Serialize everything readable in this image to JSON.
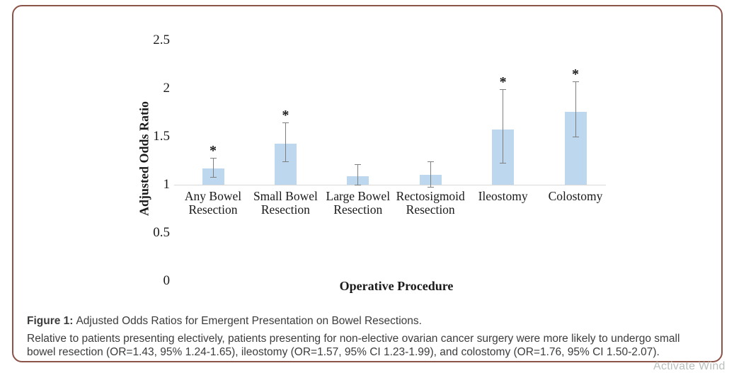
{
  "figure_caption": {
    "label": "Figure 1:",
    "title": "Adjusted Odds Ratios for Emergent Presentation on Bowel Resections.",
    "description_lines": [
      "Relative to patients presenting electively, patients presenting for non-elective ovarian cancer surgery were more likely to undergo small",
      "bowel resection (OR=1.43, 95% 1.24-1.65), ileostomy (OR=1.57, 95% CI 1.23-1.99), and colostomy (OR=1.76, 95% CI 1.50-2.07)."
    ]
  },
  "watermark": {
    "text": "Activate Wind"
  },
  "colors": {
    "figure_border": "#8c5348",
    "bar_fill": "#bdd7ee",
    "error_bar": "#7f7f7f",
    "axis_line": "#d9d9d9",
    "chart_text": "#1a1a1a",
    "caption_text": "#3c3c3c",
    "watermark_text": "#b9c0bb"
  },
  "chart_data": {
    "type": "bar",
    "title": "",
    "xlabel": "Operative Procedure",
    "ylabel": "Adjusted Odds Ratio",
    "categories": [
      "Any Bowel Resection",
      "Small Bowel Resection",
      "Large Bowel Resection",
      "Rectosigmoid Resection",
      "Ileostomy",
      "Colostomy"
    ],
    "values": [
      1.17,
      1.43,
      1.09,
      1.1,
      1.57,
      1.76
    ],
    "ci_low": [
      1.08,
      1.24,
      1.0,
      0.98,
      1.23,
      1.5
    ],
    "ci_high": [
      1.28,
      1.65,
      1.21,
      1.24,
      1.99,
      2.07
    ],
    "significant": [
      true,
      true,
      false,
      false,
      true,
      true
    ],
    "significance_marker": "*",
    "bar_base": 1,
    "ylim": [
      0,
      2.5
    ],
    "yticks": [
      {
        "label": "0",
        "value": 0
      },
      {
        "label": "0.5",
        "value": 0.5
      },
      {
        "label": "1",
        "value": 1
      },
      {
        "label": "1.5",
        "value": 1.5
      },
      {
        "label": "2",
        "value": 2
      },
      {
        "label": "2.5",
        "value": 2.5
      }
    ],
    "grid": false,
    "legend": false,
    "bar_color": "#bdd7ee",
    "error_bar_color": "#7f7f7f",
    "axis_line_color": "#d9d9d9"
  }
}
